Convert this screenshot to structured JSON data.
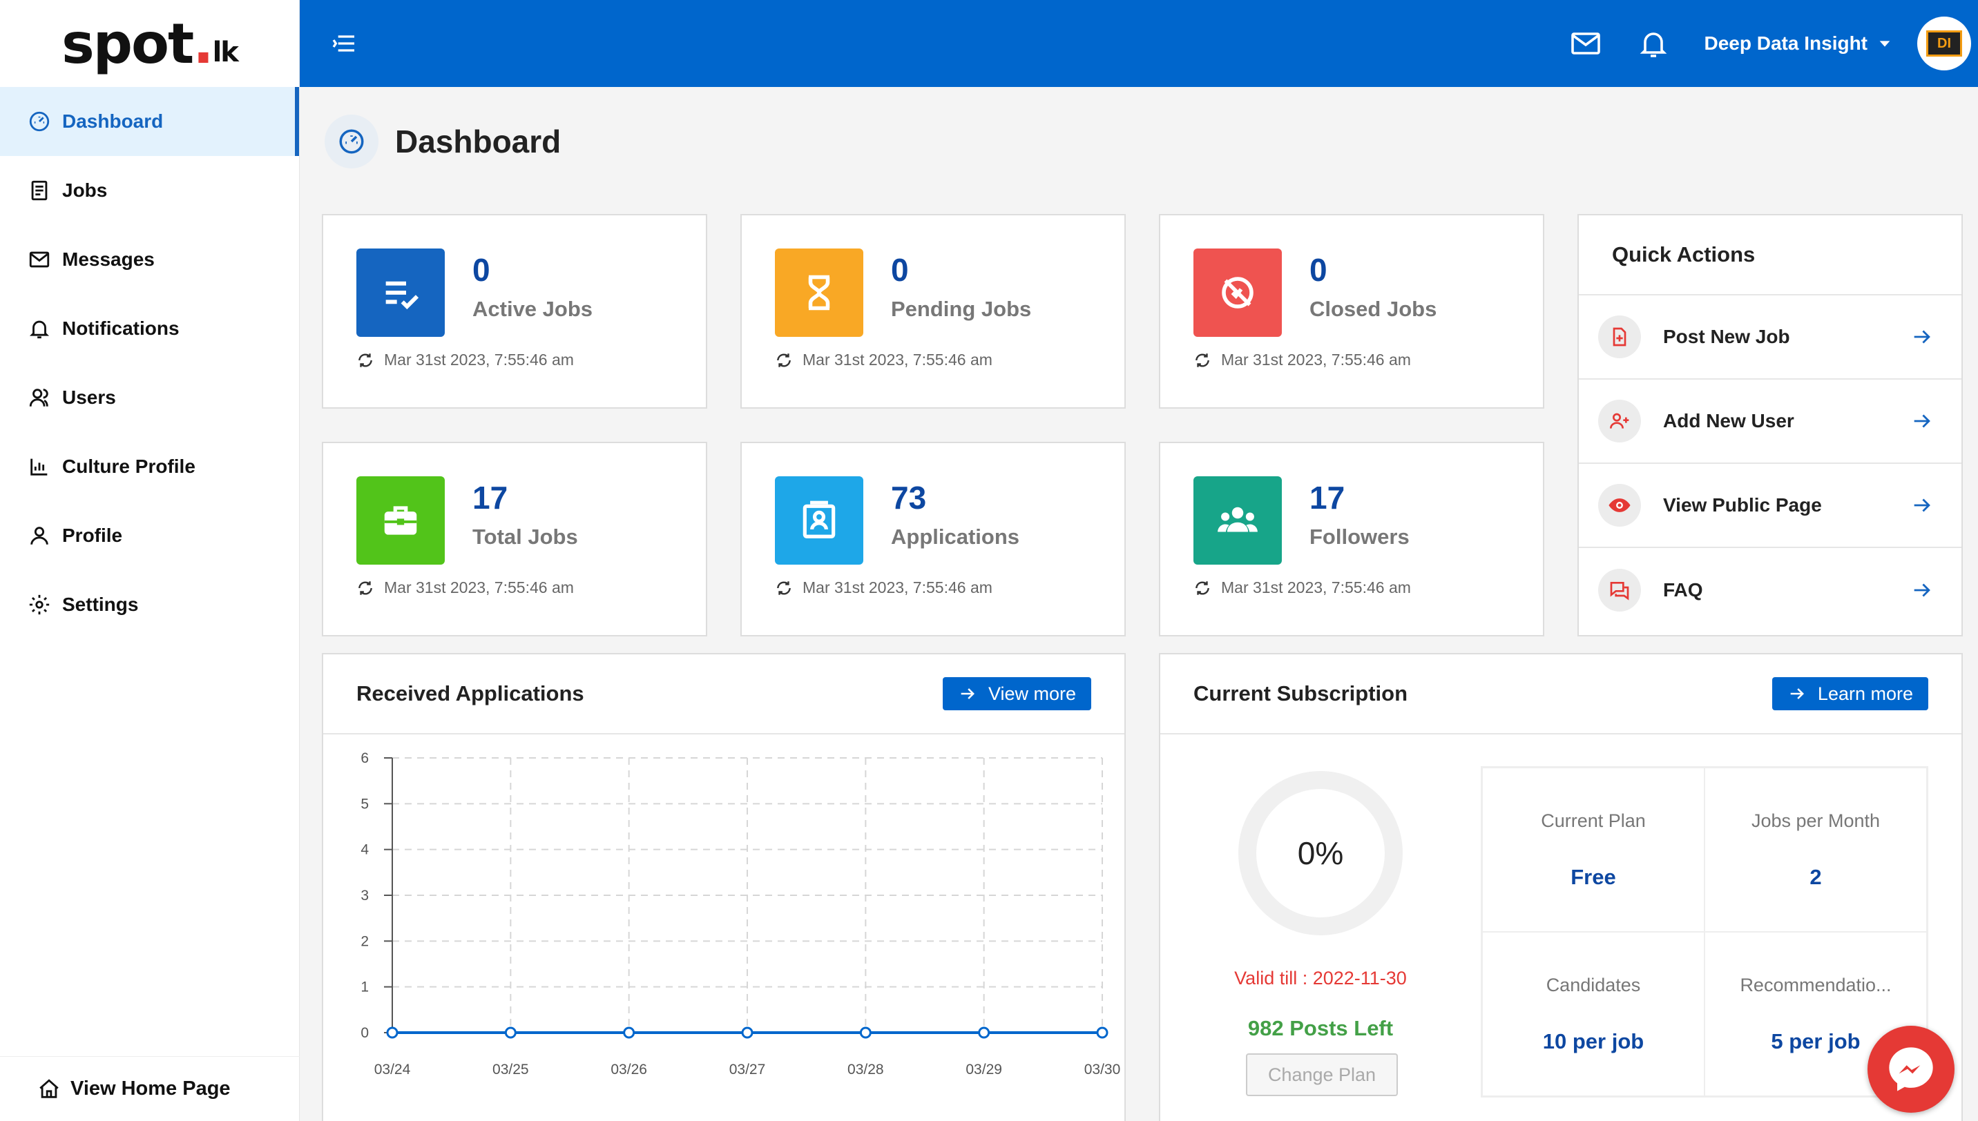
{
  "brand": {
    "main": "spot",
    "dot": ".",
    "suffix": "lk"
  },
  "sidebar": {
    "items": [
      {
        "label": "Dashboard",
        "icon": "gauge-icon",
        "active": true
      },
      {
        "label": "Jobs",
        "icon": "document-icon"
      },
      {
        "label": "Messages",
        "icon": "mail-icon"
      },
      {
        "label": "Notifications",
        "icon": "bell-icon"
      },
      {
        "label": "Users",
        "icon": "users-icon"
      },
      {
        "label": "Culture Profile",
        "icon": "bar-chart-icon"
      },
      {
        "label": "Profile",
        "icon": "user-icon"
      },
      {
        "label": "Settings",
        "icon": "gear-icon"
      }
    ],
    "home_link": "View Home Page"
  },
  "topbar": {
    "user_name": "Deep Data Insight",
    "avatar_text": "DI"
  },
  "page": {
    "title": "Dashboard"
  },
  "stats": [
    {
      "value": "0",
      "label": "Active Jobs",
      "timestamp": "Mar 31st 2023, 7:55:46 am",
      "color": "#1565c0",
      "icon": "checklist-icon"
    },
    {
      "value": "0",
      "label": "Pending Jobs",
      "timestamp": "Mar 31st 2023, 7:55:46 am",
      "color": "#f9a825",
      "icon": "hourglass-icon"
    },
    {
      "value": "0",
      "label": "Closed Jobs",
      "timestamp": "Mar 31st 2023, 7:55:46 am",
      "color": "#ef5350",
      "icon": "block-icon"
    },
    {
      "value": "17",
      "label": "Total Jobs",
      "timestamp": "Mar 31st 2023, 7:55:46 am",
      "color": "#52c41a",
      "icon": "briefcase-icon"
    },
    {
      "value": "73",
      "label": "Applications",
      "timestamp": "Mar 31st 2023, 7:55:46 am",
      "color": "#1ea7e8",
      "icon": "contact-card-icon"
    },
    {
      "value": "17",
      "label": "Followers",
      "timestamp": "Mar 31st 2023, 7:55:46 am",
      "color": "#17a589",
      "icon": "group-icon"
    }
  ],
  "quick_actions": {
    "title": "Quick Actions",
    "items": [
      {
        "label": "Post New Job",
        "icon": "file-plus-icon"
      },
      {
        "label": "Add New User",
        "icon": "user-plus-icon"
      },
      {
        "label": "View Public Page",
        "icon": "eye-icon"
      },
      {
        "label": "FAQ",
        "icon": "chat-icon"
      }
    ]
  },
  "received_applications": {
    "title": "Received Applications",
    "button": "View more"
  },
  "chart_data": {
    "type": "line",
    "x": [
      "03/24",
      "03/25",
      "03/26",
      "03/27",
      "03/28",
      "03/29",
      "03/30"
    ],
    "series": [
      {
        "values": [
          0,
          0,
          0,
          0,
          0,
          0,
          0
        ],
        "color": "#0066cc"
      }
    ],
    "yticks": [
      0,
      1,
      2,
      3,
      4,
      5,
      6
    ],
    "ylim": [
      0,
      6
    ],
    "grid": true,
    "title": "",
    "xlabel": "",
    "ylabel": ""
  },
  "subscription": {
    "title": "Current Subscription",
    "button": "Learn more",
    "percent": "0%",
    "percent_value": 0,
    "valid_till": "Valid till : 2022-11-30",
    "posts_left": "982 Posts Left",
    "change_plan": "Change Plan",
    "plan": [
      {
        "label": "Current Plan",
        "value": "Free"
      },
      {
        "label": "Jobs per Month",
        "value": "2"
      },
      {
        "label": "Candidates",
        "value": "10 per job"
      },
      {
        "label": "Recommendatio...",
        "value": "5 per job"
      }
    ]
  }
}
